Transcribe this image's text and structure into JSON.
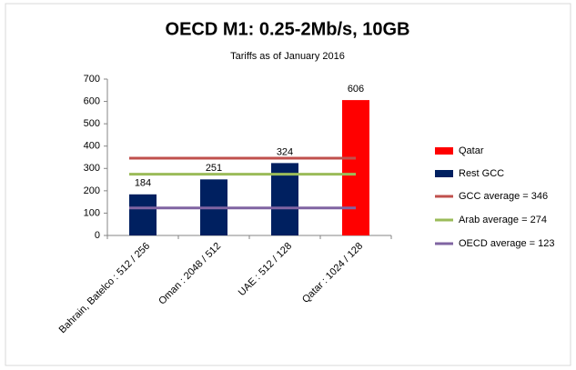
{
  "chart_data": {
    "type": "bar",
    "title": "OECD M1: 0.25-2Mb/s, 10GB",
    "subtitle": "Tariffs  as of January 2016",
    "categories": [
      "Bahrain, Batelco : 512 / 256",
      "Oman : 2048 / 512",
      "UAE : 512 / 128",
      "Qatar : 1024 / 128"
    ],
    "series": [
      {
        "name": "Qatar",
        "color": "#ff0000",
        "values": [
          null,
          null,
          null,
          606
        ]
      },
      {
        "name": "Rest GCC",
        "color": "#002060",
        "values": [
          184,
          251,
          324,
          null
        ]
      }
    ],
    "reference_lines": [
      {
        "name": "GCC average = 346",
        "value": 346,
        "color": "#c0504d"
      },
      {
        "name": "Arab average = 274",
        "value": 274,
        "color": "#9bbb59"
      },
      {
        "name": "OECD average = 123",
        "value": 123,
        "color": "#8064a2"
      }
    ],
    "ylim": [
      0,
      700
    ],
    "yticks": [
      0,
      100,
      200,
      300,
      400,
      500,
      600,
      700
    ],
    "legend": "right"
  }
}
